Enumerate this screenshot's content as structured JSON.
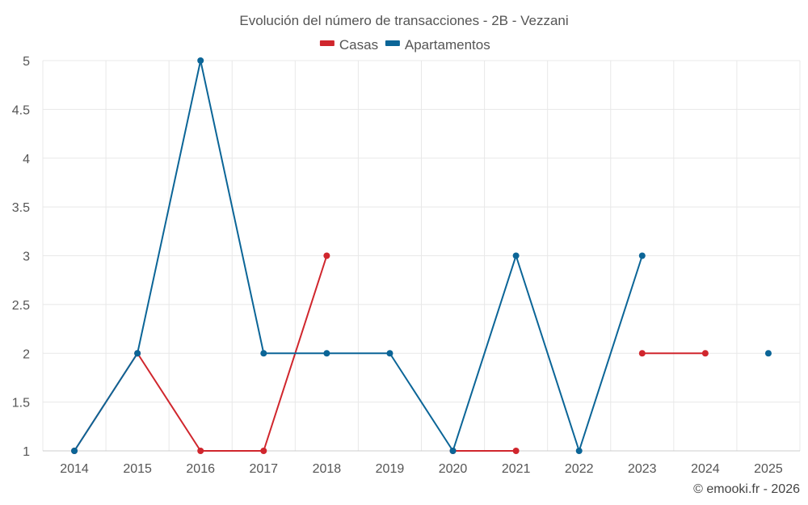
{
  "chart_data": {
    "type": "line",
    "title": "Evolución del número de transacciones - 2B - Vezzani",
    "x": [
      "2014",
      "2015",
      "2016",
      "2017",
      "2018",
      "2019",
      "2020",
      "2021",
      "2022",
      "2023",
      "2024",
      "2025"
    ],
    "ylim": [
      1,
      5
    ],
    "yticks": [
      "1",
      "1.5",
      "2",
      "2.5",
      "3",
      "3.5",
      "4",
      "4.5",
      "5"
    ],
    "ytick_values": [
      1,
      1.5,
      2,
      2.5,
      3,
      3.5,
      4,
      4.5,
      5
    ],
    "grid": true,
    "legend_position": "top-center",
    "series": [
      {
        "name": "Casas",
        "color": "#d0262d",
        "values": [
          1,
          2,
          1,
          1,
          3,
          null,
          1,
          1,
          null,
          2,
          2,
          null
        ]
      },
      {
        "name": "Apartamentos",
        "color": "#0b6597",
        "values": [
          1,
          2,
          5,
          2,
          2,
          2,
          1,
          3,
          1,
          3,
          null,
          2
        ]
      }
    ]
  },
  "credit": "© emooki.fr - 2026"
}
